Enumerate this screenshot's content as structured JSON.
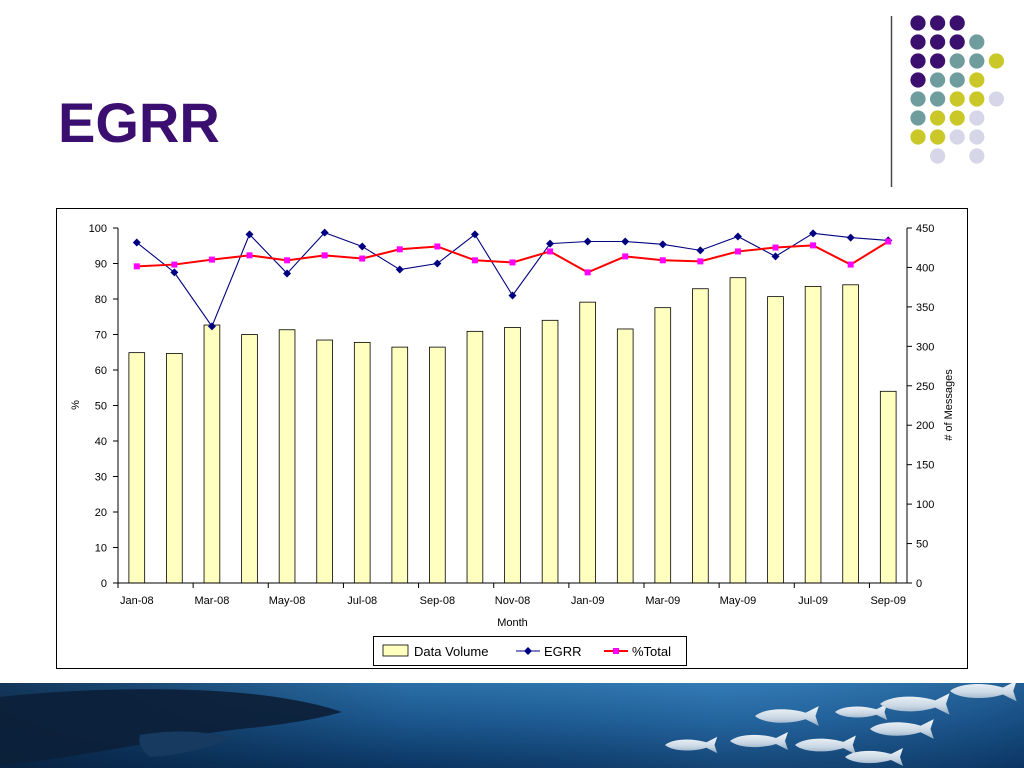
{
  "slide": {
    "title": "EGRR"
  },
  "theme": {
    "title_color": "#3B0F70",
    "dot_purple": "#3B0F6E",
    "dot_teal": "#6F9D9E",
    "dot_yellow": "#C9C828",
    "dot_lavender": "#D6D6E8",
    "divider_color": "#4A4A4A"
  },
  "chart_data": {
    "type": "bar",
    "categories": [
      "Jan-08",
      "",
      "Mar-08",
      "",
      "May-08",
      "",
      "Jul-08",
      "",
      "Sep-08",
      "",
      "Nov-08",
      "",
      "Jan-09",
      "",
      "Mar-09",
      "",
      "May-09",
      "",
      "Jul-09",
      "",
      "Sep-09"
    ],
    "xlabel": "Month",
    "ylabel": "%",
    "y2label": "# of Messages",
    "y_axis": {
      "min": 0,
      "max": 100,
      "ticks": [
        0,
        10,
        20,
        30,
        40,
        50,
        60,
        70,
        80,
        90,
        100
      ]
    },
    "y2_axis": {
      "min": 0,
      "max": 450,
      "ticks": [
        0,
        50,
        100,
        150,
        200,
        250,
        300,
        350,
        400,
        450
      ]
    },
    "grid": false,
    "legend": {
      "position": "bottom"
    },
    "series": [
      {
        "name": "Data Volume",
        "type": "bar",
        "axis": "right",
        "color": "#FFFFC0",
        "values": [
          292,
          291,
          327,
          315,
          321,
          308,
          305,
          299,
          299,
          319,
          324,
          333,
          356,
          322,
          349,
          373,
          387,
          363,
          376,
          378,
          243
        ]
      },
      {
        "name": "EGRR",
        "type": "line",
        "axis": "left",
        "color": "#000080",
        "marker": "diamond",
        "marker_color": "#000080",
        "values": [
          95.9,
          87.5,
          72.3,
          98.2,
          87.2,
          98.7,
          94.8,
          88.3,
          90.0,
          98.2,
          81.0,
          95.6,
          96.2,
          96.2,
          95.4,
          93.7,
          97.6,
          92.0,
          98.5,
          97.3,
          96.5
        ]
      },
      {
        "name": "%Total",
        "type": "line",
        "axis": "left",
        "color": "#FF0000",
        "marker": "square",
        "marker_color": "#FF00FF",
        "values": [
          89.2,
          89.7,
          91.1,
          92.3,
          90.9,
          92.3,
          91.4,
          94.0,
          94.8,
          90.9,
          90.3,
          93.4,
          87.5,
          92.0,
          90.9,
          90.6,
          93.4,
          94.5,
          95.1,
          89.7,
          96.2
        ]
      }
    ]
  }
}
